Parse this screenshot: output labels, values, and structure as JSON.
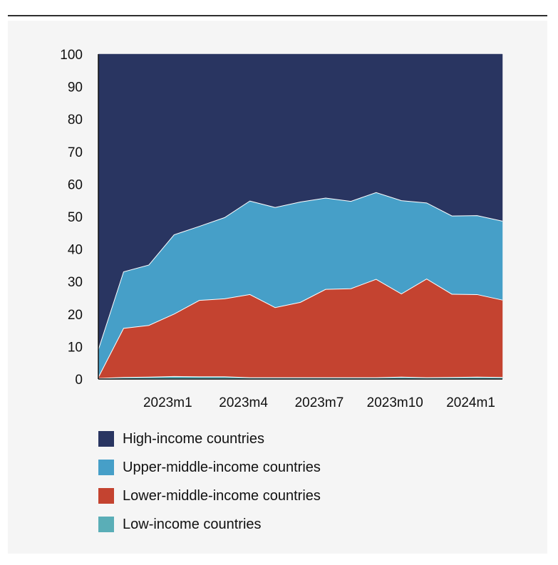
{
  "chart_data": {
    "type": "area",
    "stacked": true,
    "percent": true,
    "x_count": 17,
    "x_tick_labels": [
      {
        "index": 3,
        "label": "2023m1"
      },
      {
        "index": 6,
        "label": "2023m4"
      },
      {
        "index": 9,
        "label": "2023m7"
      },
      {
        "index": 12,
        "label": "2023m10"
      },
      {
        "index": 15,
        "label": "2024m1"
      }
    ],
    "ylim": [
      0,
      100
    ],
    "yticks": [
      0,
      10,
      20,
      30,
      40,
      50,
      60,
      70,
      80,
      90,
      100
    ],
    "title": "",
    "xlabel": "",
    "ylabel": "",
    "grid": false,
    "legend_position": "bottom",
    "series": [
      {
        "name": "Low-income countries",
        "color": "#5aaeb7",
        "values": [
          0.2,
          0.5,
          0.6,
          0.8,
          0.7,
          0.7,
          0.4,
          0.4,
          0.4,
          0.4,
          0.4,
          0.4,
          0.6,
          0.4,
          0.5,
          0.6,
          0.5
        ]
      },
      {
        "name": "Lower-middle-income countries",
        "color": "#c44330",
        "values": [
          0.3,
          15.1,
          15.9,
          19.2,
          23.5,
          24.0,
          25.6,
          21.6,
          23.2,
          27.2,
          27.4,
          30.3,
          25.6,
          30.4,
          25.6,
          25.4,
          23.8
        ]
      },
      {
        "name": "Upper-middle-income countries",
        "color": "#469fc8",
        "values": [
          8.5,
          17.4,
          18.6,
          24.4,
          22.8,
          25.0,
          28.8,
          30.8,
          30.9,
          28.1,
          26.9,
          26.7,
          28.7,
          23.4,
          24.1,
          24.3,
          24.3
        ]
      },
      {
        "name": "High-income countries",
        "color": "#293561",
        "values": [
          91.0,
          67.0,
          64.9,
          55.6,
          53.0,
          50.3,
          45.2,
          47.2,
          45.5,
          44.3,
          45.3,
          42.6,
          45.1,
          45.8,
          49.8,
          49.7,
          51.4
        ]
      }
    ]
  },
  "legend": {
    "items": [
      {
        "label": "High-income countries",
        "color": "#293561"
      },
      {
        "label": "Upper-middle-income countries",
        "color": "#469fc8"
      },
      {
        "label": "Lower-middle-income countries",
        "color": "#c44330"
      },
      {
        "label": "Low-income countries",
        "color": "#5aaeb7"
      }
    ]
  }
}
